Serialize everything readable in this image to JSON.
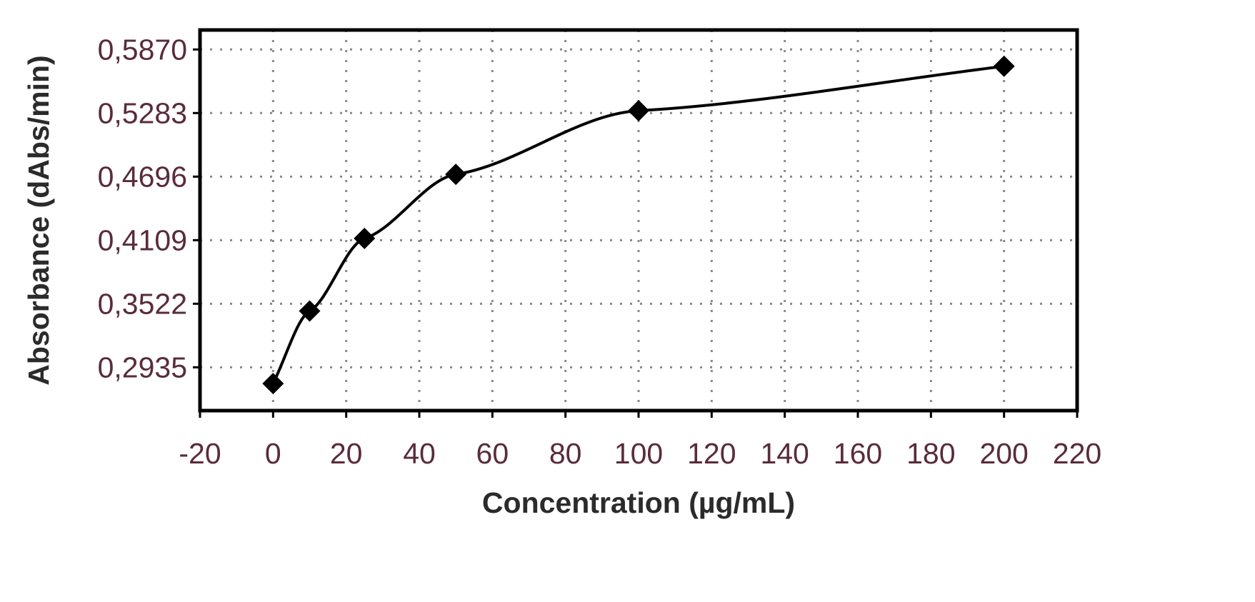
{
  "chart_data": {
    "type": "scatter",
    "title": "",
    "xlabel": "Concentration (µg/mL)",
    "ylabel": "Absorbance (dAbs/min)",
    "xlim": [
      -20,
      220
    ],
    "ylim": [
      0.2535,
      0.605
    ],
    "x_ticks": [
      -20,
      0,
      20,
      40,
      60,
      80,
      100,
      120,
      140,
      160,
      180,
      200,
      220
    ],
    "x_tick_labels": [
      "-20",
      "0",
      "20",
      "40",
      "60",
      "80",
      "100",
      "120",
      "140",
      "160",
      "180",
      "200",
      "220"
    ],
    "y_ticks": [
      0.2935,
      0.3522,
      0.4109,
      0.4696,
      0.5283,
      0.587
    ],
    "y_tick_labels": [
      "0,2935",
      "0,3522",
      "0,4109",
      "0,4696",
      "0,5283",
      "0,5870"
    ],
    "grid": true,
    "series": [
      {
        "marker": "diamond",
        "color": "#000000",
        "x": [
          0,
          10,
          25,
          50,
          100,
          200
        ],
        "y": [
          0.2785,
          0.3455,
          0.4125,
          0.4717,
          0.5305,
          0.5715
        ]
      }
    ]
  }
}
